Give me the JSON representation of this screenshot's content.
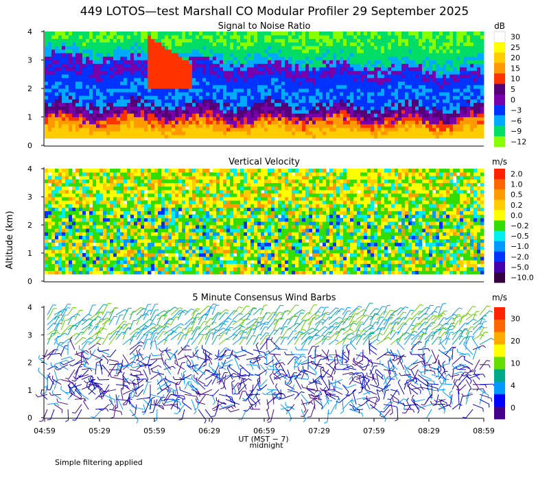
{
  "title": "449 LOTOS—test Marshall CO Modular Profiler 29 September 2025",
  "footer_note": "Simple filtering applied",
  "ylabel": "Altitude (km)",
  "x_axis": {
    "label": "UT  (MST − 7)",
    "sublabel": "midnight",
    "ticks": [
      "04:59",
      "05:29",
      "05:59",
      "06:29",
      "06:59",
      "07:29",
      "07:59",
      "08:29",
      "08:59"
    ]
  },
  "chart_data": [
    {
      "type": "heatmap",
      "title": "Signal to Noise Ratio",
      "unit": "dB",
      "ylim": [
        0,
        4
      ],
      "yticks": [
        "0",
        "1",
        "2",
        "3",
        "4"
      ],
      "legend_labels": [
        "30",
        "25",
        "20",
        "15",
        "10",
        "5",
        "0",
        "−3",
        "−6",
        "−9",
        "−12"
      ],
      "legend_colors": [
        "#ffffff",
        "#ffff00",
        "#ffcc00",
        "#ff9900",
        "#ff3300",
        "#550077",
        "#7700aa",
        "#0033ff",
        "#00aaff",
        "#00dd66",
        "#88ff00"
      ],
      "bands": [
        {
          "altitude_km": [
            0.25,
            1.1
          ],
          "snr_db": "10 to 30"
        },
        {
          "altitude_km": [
            1.1,
            1.8
          ],
          "snr_db": "0 to 5"
        },
        {
          "altitude_km": [
            1.8,
            2.5
          ],
          "snr_db": "-3 to -6"
        },
        {
          "altitude_km": [
            2.5,
            3.2
          ],
          "snr_db": "0 to 5"
        },
        {
          "altitude_km": [
            3.2,
            4.0
          ],
          "snr_db": "-6 to -12"
        }
      ]
    },
    {
      "type": "heatmap",
      "title": "Vertical Velocity",
      "unit": "m/s",
      "ylim": [
        0,
        4
      ],
      "yticks": [
        "0",
        "1",
        "2",
        "3",
        "4"
      ],
      "legend_labels": [
        "2.0",
        "1.0",
        "0.5",
        "0.2",
        "0.0",
        "−0.2",
        "−0.5",
        "−1.0",
        "−2.0",
        "−5.0",
        "−10.0"
      ],
      "legend_colors": [
        "#ff2200",
        "#ff6600",
        "#ff9900",
        "#ffcc00",
        "#ffff00",
        "#33dd00",
        "#00eeee",
        "#0099ff",
        "#0033ff",
        "#4400aa",
        "#330044"
      ]
    },
    {
      "type": "scatter",
      "title": "5 Minute Consensus Wind Barbs",
      "unit": "m/s",
      "ylim": [
        0,
        4
      ],
      "yticks": [
        "0",
        "1",
        "2",
        "3",
        "4"
      ],
      "legend_labels": [
        "30",
        "20",
        "10",
        "4",
        "0"
      ],
      "legend_colors": [
        "#ff2200",
        "#ff6600",
        "#ffaa00",
        "#ffff00",
        "#66dd00",
        "#00aa88",
        "#0099ff",
        "#0000ff",
        "#440088"
      ]
    }
  ]
}
